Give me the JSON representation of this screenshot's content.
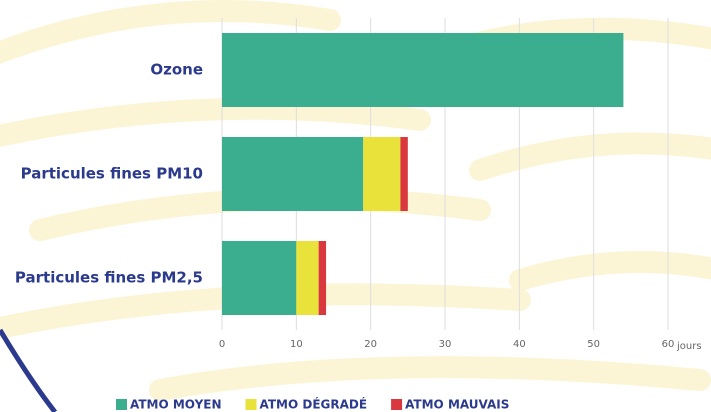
{
  "chart_data": {
    "type": "stacked-bar-horizontal",
    "categories": [
      "Ozone",
      "Particules fines PM10",
      "Particules fines PM2,5"
    ],
    "series": [
      {
        "name": "ATMO MOYEN",
        "color": "#3aae8e",
        "values": [
          54,
          19,
          10
        ]
      },
      {
        "name": "ATMO DÉGRADÉ",
        "color": "#e8e23a",
        "values": [
          0,
          5,
          3
        ]
      },
      {
        "name": "ATMO MAUVAIS",
        "color": "#d9393e",
        "values": [
          0,
          1,
          1
        ]
      }
    ],
    "x_label": "jours",
    "xlim": [
      0,
      60
    ],
    "xticks": [
      0,
      10,
      20,
      30,
      40,
      50,
      60
    ],
    "grid": true,
    "legend": "bottom"
  }
}
